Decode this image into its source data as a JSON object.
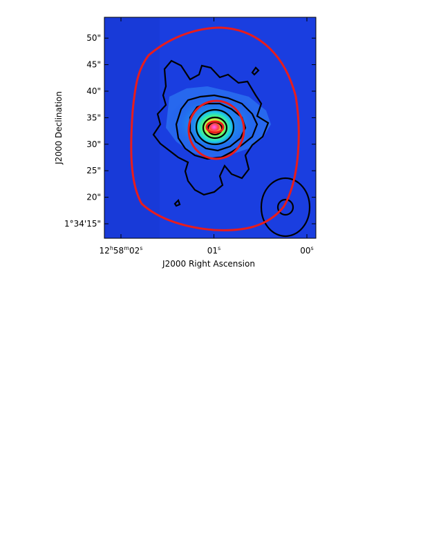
{
  "chart_data": {
    "type": "heatmap",
    "title": "",
    "xlabel": "J2000 Right Ascension",
    "ylabel": "J2000 Declination",
    "x_ticks": [
      {
        "label_parts": [
          "12",
          "h",
          "58",
          "m",
          "02",
          "s"
        ],
        "value": 2.0
      },
      {
        "label_parts": [
          "01",
          "s"
        ],
        "value": 1.0
      },
      {
        "label_parts": [
          "00",
          "s"
        ],
        "value": 0.0
      }
    ],
    "y_ticks": [
      {
        "label": "1°34'15\"",
        "value": 15
      },
      {
        "label": "20\"",
        "value": 20
      },
      {
        "label": "25\"",
        "value": 25
      },
      {
        "label": "30\"",
        "value": 30
      },
      {
        "label": "35\"",
        "value": 35
      },
      {
        "label": "40\"",
        "value": 40
      },
      {
        "label": "45\"",
        "value": 45
      },
      {
        "label": "50\"",
        "value": 50
      }
    ],
    "colors": {
      "background": "#1a3ee0",
      "red_contour": "#e81c1c",
      "black_contour": "#000000"
    }
  }
}
